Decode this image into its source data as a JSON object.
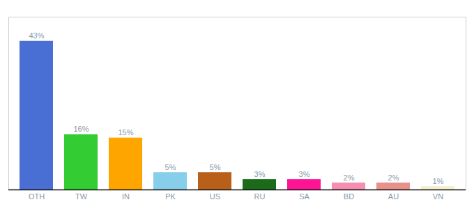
{
  "chart_data": {
    "type": "bar",
    "categories": [
      "OTH",
      "TW",
      "IN",
      "PK",
      "US",
      "RU",
      "SA",
      "BD",
      "AU",
      "VN"
    ],
    "values": [
      43,
      16,
      15,
      5,
      5,
      3,
      3,
      2,
      2,
      1
    ],
    "value_labels": [
      "43%",
      "16%",
      "15%",
      "5%",
      "5%",
      "3%",
      "3%",
      "2%",
      "2%",
      "1%"
    ],
    "colors": [
      "#4A6FD4",
      "#33CC33",
      "#FFA500",
      "#87CEEB",
      "#B8601A",
      "#1B6B1B",
      "#FF1493",
      "#F48FB1",
      "#E8908A",
      "#F5F0D0"
    ],
    "ylim": [
      0,
      50
    ],
    "data_labels": true,
    "tick_labels": "x"
  }
}
